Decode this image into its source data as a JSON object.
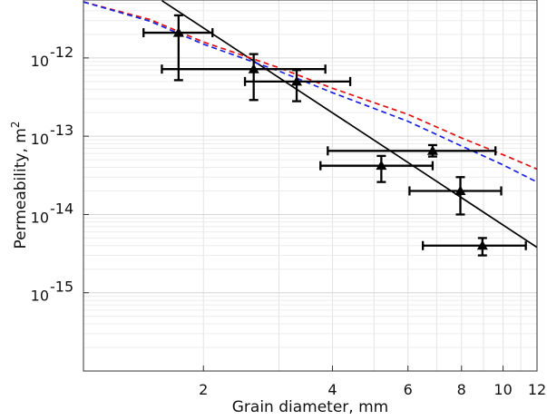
{
  "chart_data": {
    "type": "scatter",
    "x_scale": "log",
    "y_scale": "log",
    "xlabel": "Grain diameter, mm",
    "ylabel_main": "Permeability, m",
    "ylabel_sup": "2",
    "xlim": [
      1.05,
      12
    ],
    "ylim": [
      1e-16,
      5.5e-12
    ],
    "grid": true,
    "x_ticks": [
      {
        "v": 2,
        "label": "2"
      },
      {
        "v": 4,
        "label": "4"
      },
      {
        "v": 6,
        "label": "6"
      },
      {
        "v": 8,
        "label": "8"
      },
      {
        "v": 10,
        "label": "10"
      },
      {
        "v": 12,
        "label": "12"
      }
    ],
    "y_ticks": [
      {
        "v": 1e-12,
        "base": "10",
        "exp": "-12"
      },
      {
        "v": 1e-13,
        "base": "10",
        "exp": "-13"
      },
      {
        "v": 1e-14,
        "base": "10",
        "exp": "-14"
      },
      {
        "v": 1e-15,
        "base": "10",
        "exp": "-15"
      }
    ],
    "points": [
      {
        "x": 1.75,
        "y": 2.1e-12,
        "xerr": [
          1.45,
          2.1
        ],
        "yerr": [
          5.2e-13,
          3.5e-12
        ]
      },
      {
        "x": 2.62,
        "y": 7.2e-13,
        "xerr": [
          1.6,
          3.85
        ],
        "yerr": [
          2.9e-13,
          1.12e-12
        ]
      },
      {
        "x": 3.3,
        "y": 5e-13,
        "xerr": [
          2.5,
          4.4
        ],
        "yerr": [
          2.8e-13,
          7e-13
        ]
      },
      {
        "x": 5.2,
        "y": 4.2e-14,
        "xerr": [
          3.75,
          6.85
        ],
        "yerr": [
          2.6e-14,
          5.6e-14
        ]
      },
      {
        "x": 6.85,
        "y": 6.5e-14,
        "xerr": [
          3.9,
          9.6
        ],
        "yerr": [
          5.5e-14,
          7.7e-14
        ]
      },
      {
        "x": 7.95,
        "y": 2e-14,
        "xerr": [
          6.05,
          9.9
        ],
        "yerr": [
          1e-14,
          3e-14
        ]
      },
      {
        "x": 8.95,
        "y": 4e-15,
        "xerr": [
          6.5,
          11.3
        ],
        "yerr": [
          3e-15,
          5e-15
        ]
      }
    ],
    "lines": [
      {
        "style": "solid",
        "color": "#000000",
        "pts": [
          [
            1.6,
            5.4e-12
          ],
          [
            12,
            3.8e-15
          ]
        ]
      },
      {
        "style": "dashed",
        "color": "#e01010",
        "pts": [
          [
            1.05,
            5.2e-12
          ],
          [
            1.5,
            3.1e-12
          ],
          [
            2,
            1.6e-12
          ],
          [
            3,
            7.5e-13
          ],
          [
            4,
            4.1e-13
          ],
          [
            6,
            1.9e-13
          ],
          [
            8,
            9.5e-14
          ],
          [
            10,
            5.8e-14
          ],
          [
            12,
            3.8e-14
          ]
        ]
      },
      {
        "style": "dashed",
        "color": "#1a22e0",
        "pts": [
          [
            1.05,
            5.2e-12
          ],
          [
            1.5,
            2.95e-12
          ],
          [
            2,
            1.5e-12
          ],
          [
            3,
            6.8e-13
          ],
          [
            4,
            3.6e-13
          ],
          [
            6,
            1.55e-13
          ],
          [
            8,
            7.5e-14
          ],
          [
            10,
            4.3e-14
          ],
          [
            12,
            2.6e-14
          ]
        ]
      }
    ]
  }
}
